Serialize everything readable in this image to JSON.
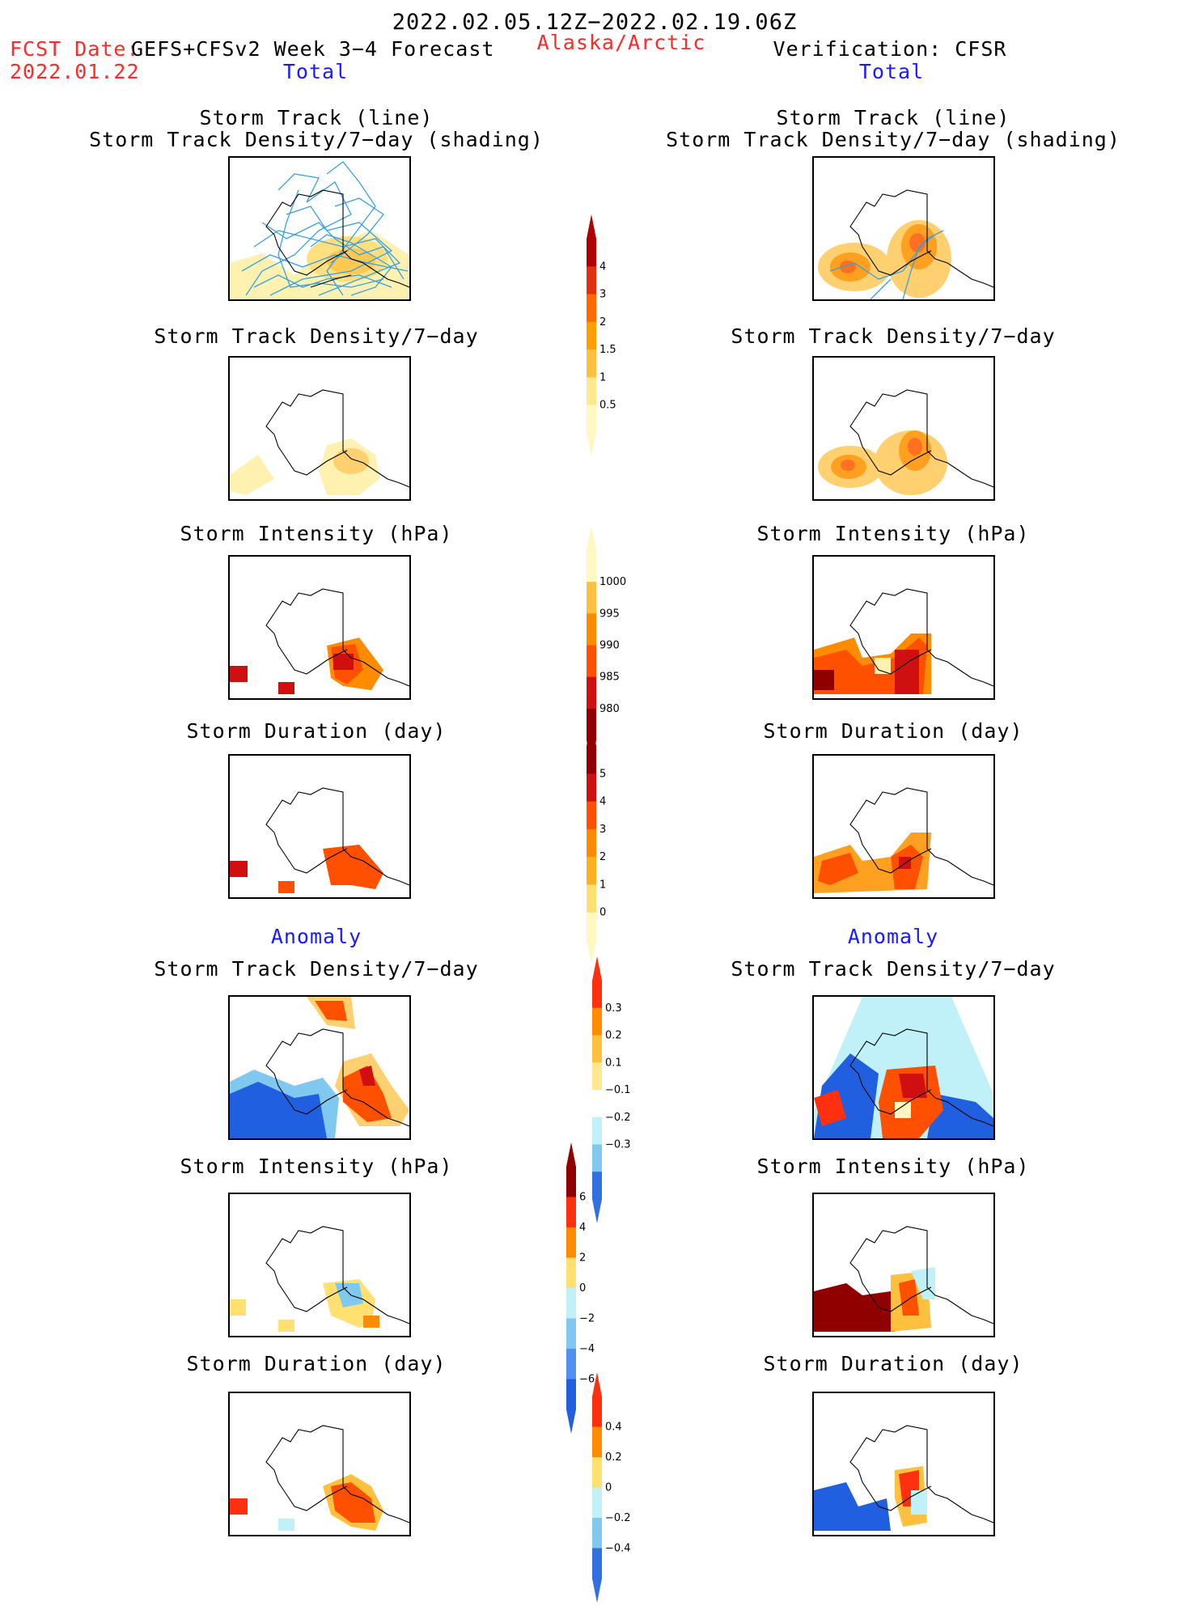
{
  "header": {
    "date_range": "2022.02.05.12Z−2022.02.19.06Z",
    "fcst_date_label": "FCST Date:",
    "fcst_date_value": "2022.01.22",
    "model_label": "GEFS+CFSv2 Week 3−4 Forecast",
    "region": "Alaska/Arctic",
    "verification_label": "Verification: CFSR"
  },
  "sections": {
    "total_label": "Total",
    "anomaly_label": "Anomaly"
  },
  "left_panels": {
    "track_title_1": "Storm Track (line)",
    "track_title_2": "Storm Track Density/7−day (shading)",
    "density_title": "Storm Track Density/7−day",
    "intensity_title": "Storm Intensity (hPa)",
    "duration_title": "Storm Duration (day)",
    "anom_density_title": "Storm Track Density/7−day",
    "anom_intensity_title": "Storm Intensity (hPa)",
    "anom_duration_title": "Storm Duration (day)"
  },
  "right_panels": {
    "track_title_1": "Storm Track (line)",
    "track_title_2": "Storm Track Density/7−day (shading)",
    "density_title": "Storm Track Density/7−day",
    "intensity_title": "Storm Intensity (hPa)",
    "duration_title": "Storm Duration (day)",
    "anom_density_title": "Storm Track Density/7−day",
    "anom_intensity_title": "Storm Intensity (hPa)",
    "anom_duration_title": "Storm Duration (day)"
  },
  "colorbars": {
    "density": {
      "labels": [
        "4",
        "3",
        "2",
        "1.5",
        "1",
        "0.5"
      ],
      "colors": [
        "#b00000",
        "#e03010",
        "#ff6a00",
        "#ffa000",
        "#ffc040",
        "#ffe890",
        "#fff8c0"
      ]
    },
    "intensity": {
      "labels": [
        "1000",
        "995",
        "990",
        "985",
        "980"
      ],
      "colors": [
        "#fff8c0",
        "#ffc040",
        "#ff8c00",
        "#ff5000",
        "#d01010",
        "#900000"
      ]
    },
    "duration": {
      "labels": [
        "5",
        "4",
        "3",
        "2",
        "1",
        "0"
      ],
      "colors": [
        "#900000",
        "#d01010",
        "#ff5000",
        "#ff8c00",
        "#ffb020",
        "#ffe070",
        "#fff8c0"
      ]
    },
    "anom_density": {
      "labels": [
        "0.3",
        "0.2",
        "0.1",
        "−0.1",
        "−0.2",
        "−0.3"
      ],
      "colors": [
        "#ff3010",
        "#ff8c00",
        "#ffc040",
        "#ffe890",
        "#ffffff",
        "#c0f0f8",
        "#80c8f0",
        "#3070e0"
      ]
    },
    "anom_intensity": {
      "labels": [
        "6",
        "4",
        "2",
        "0",
        "−2",
        "−4",
        "−6"
      ],
      "colors": [
        "#900000",
        "#ff3010",
        "#ff8c00",
        "#ffe070",
        "#c0f0f8",
        "#80c8f0",
        "#5090f0",
        "#2060e0"
      ]
    },
    "anom_duration": {
      "labels": [
        "0.4",
        "0.2",
        "0",
        "−0.2",
        "−0.4"
      ],
      "colors": [
        "#ff3010",
        "#ff8c00",
        "#ffe070",
        "#c0f0f8",
        "#80c8f0",
        "#3070e0"
      ]
    }
  },
  "colors": {
    "header_red": "#ff2a2a",
    "header_blue": "#1a1aff",
    "track_lines": "#3aa0e0"
  }
}
